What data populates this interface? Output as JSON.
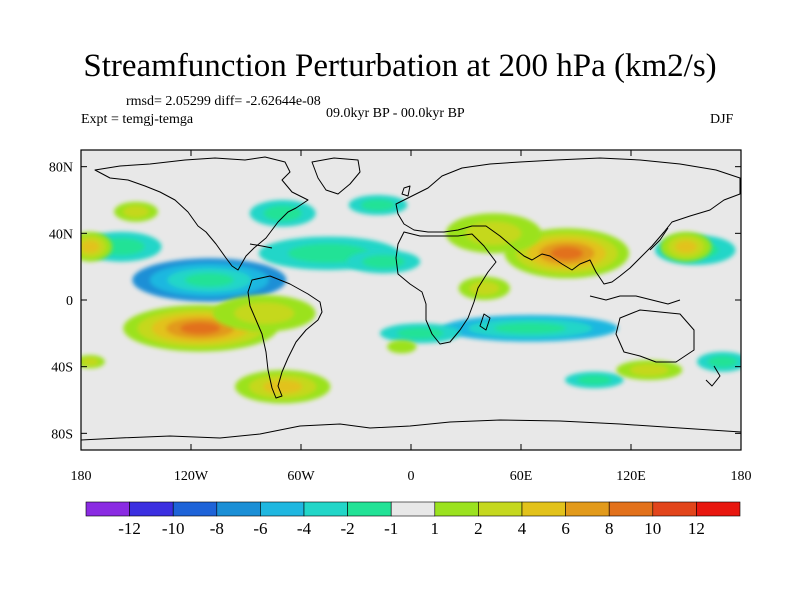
{
  "chart_data": {
    "type": "heatmap",
    "title": "Streamfunction Perturbation at 200 hPa (km2/s)",
    "stats_text": "rmsd= 2.05299 diff= -2.62644e-08",
    "experiment_text": "Expt = temgj-temga",
    "period_text": "09.0kyr BP - 00.0kyr BP",
    "season": "DJF",
    "xlim": [
      -180,
      180
    ],
    "ylim": [
      -90,
      90
    ],
    "x_ticks": [
      {
        "value": -180,
        "label": "180"
      },
      {
        "value": -120,
        "label": "120W"
      },
      {
        "value": -60,
        "label": "60W"
      },
      {
        "value": 0,
        "label": "0"
      },
      {
        "value": 60,
        "label": "60E"
      },
      {
        "value": 120,
        "label": "120E"
      },
      {
        "value": 180,
        "label": "180"
      }
    ],
    "y_ticks": [
      {
        "value": 80,
        "label": "80N"
      },
      {
        "value": 40,
        "label": "40N"
      },
      {
        "value": 0,
        "label": "0"
      },
      {
        "value": -40,
        "label": "40S"
      },
      {
        "value": -80,
        "label": "80S"
      }
    ],
    "colorbar": {
      "levels": [
        "-12",
        "-10",
        "-8",
        "-6",
        "-4",
        "-2",
        "-1",
        "1",
        "2",
        "4",
        "6",
        "8",
        "10",
        "12"
      ],
      "colors": [
        "#8a2be2",
        "#3b2fe0",
        "#1e63d8",
        "#1b8fd6",
        "#1fb7e0",
        "#22d6c8",
        "#22e296",
        "#e8e8e8",
        "#9be21f",
        "#c5d81f",
        "#e2c21b",
        "#e29a1b",
        "#e2711b",
        "#e2451b",
        "#e8170f"
      ]
    },
    "field_features": [
      {
        "lon": -110,
        "lat": 12,
        "value": -7,
        "rx": 42,
        "ry": 13
      },
      {
        "lon": -158,
        "lat": 32,
        "value": -3,
        "rx": 22,
        "ry": 9
      },
      {
        "lon": -70,
        "lat": 52,
        "value": -3,
        "rx": 18,
        "ry": 8
      },
      {
        "lon": 65,
        "lat": -17,
        "value": -4,
        "rx": 48,
        "ry": 8
      },
      {
        "lon": -45,
        "lat": 28,
        "value": -2,
        "rx": 38,
        "ry": 10
      },
      {
        "lon": -15,
        "lat": 23,
        "value": -2,
        "rx": 20,
        "ry": 7
      },
      {
        "lon": 155,
        "lat": 30,
        "value": -2,
        "rx": 22,
        "ry": 9
      },
      {
        "lon": 5,
        "lat": -20,
        "value": -2,
        "rx": 22,
        "ry": 6
      },
      {
        "lon": 170,
        "lat": -37,
        "value": -2,
        "rx": 14,
        "ry": 6
      },
      {
        "lon": -18,
        "lat": 57,
        "value": -2,
        "rx": 16,
        "ry": 6
      },
      {
        "lon": 100,
        "lat": -48,
        "value": -2,
        "rx": 16,
        "ry": 5
      },
      {
        "lon": -115,
        "lat": -17,
        "value": 8,
        "rx": 42,
        "ry": 14
      },
      {
        "lon": -80,
        "lat": -8,
        "value": 3,
        "rx": 28,
        "ry": 11
      },
      {
        "lon": 85,
        "lat": 28,
        "value": 9,
        "rx": 34,
        "ry": 15
      },
      {
        "lon": 45,
        "lat": 40,
        "value": 3,
        "rx": 26,
        "ry": 12
      },
      {
        "lon": -175,
        "lat": 32,
        "value": 4,
        "rx": 12,
        "ry": 9
      },
      {
        "lon": -70,
        "lat": -52,
        "value": 4,
        "rx": 26,
        "ry": 10
      },
      {
        "lon": 130,
        "lat": -42,
        "value": 2,
        "rx": 18,
        "ry": 6
      },
      {
        "lon": 150,
        "lat": 32,
        "value": 4,
        "rx": 14,
        "ry": 9
      },
      {
        "lon": -150,
        "lat": 53,
        "value": 2,
        "rx": 12,
        "ry": 6
      },
      {
        "lon": 40,
        "lat": 7,
        "value": 2,
        "rx": 14,
        "ry": 7
      },
      {
        "lon": -175,
        "lat": -37,
        "value": 2,
        "rx": 8,
        "ry": 4
      },
      {
        "lon": -5,
        "lat": -28,
        "value": 1.5,
        "rx": 8,
        "ry": 4
      }
    ]
  }
}
